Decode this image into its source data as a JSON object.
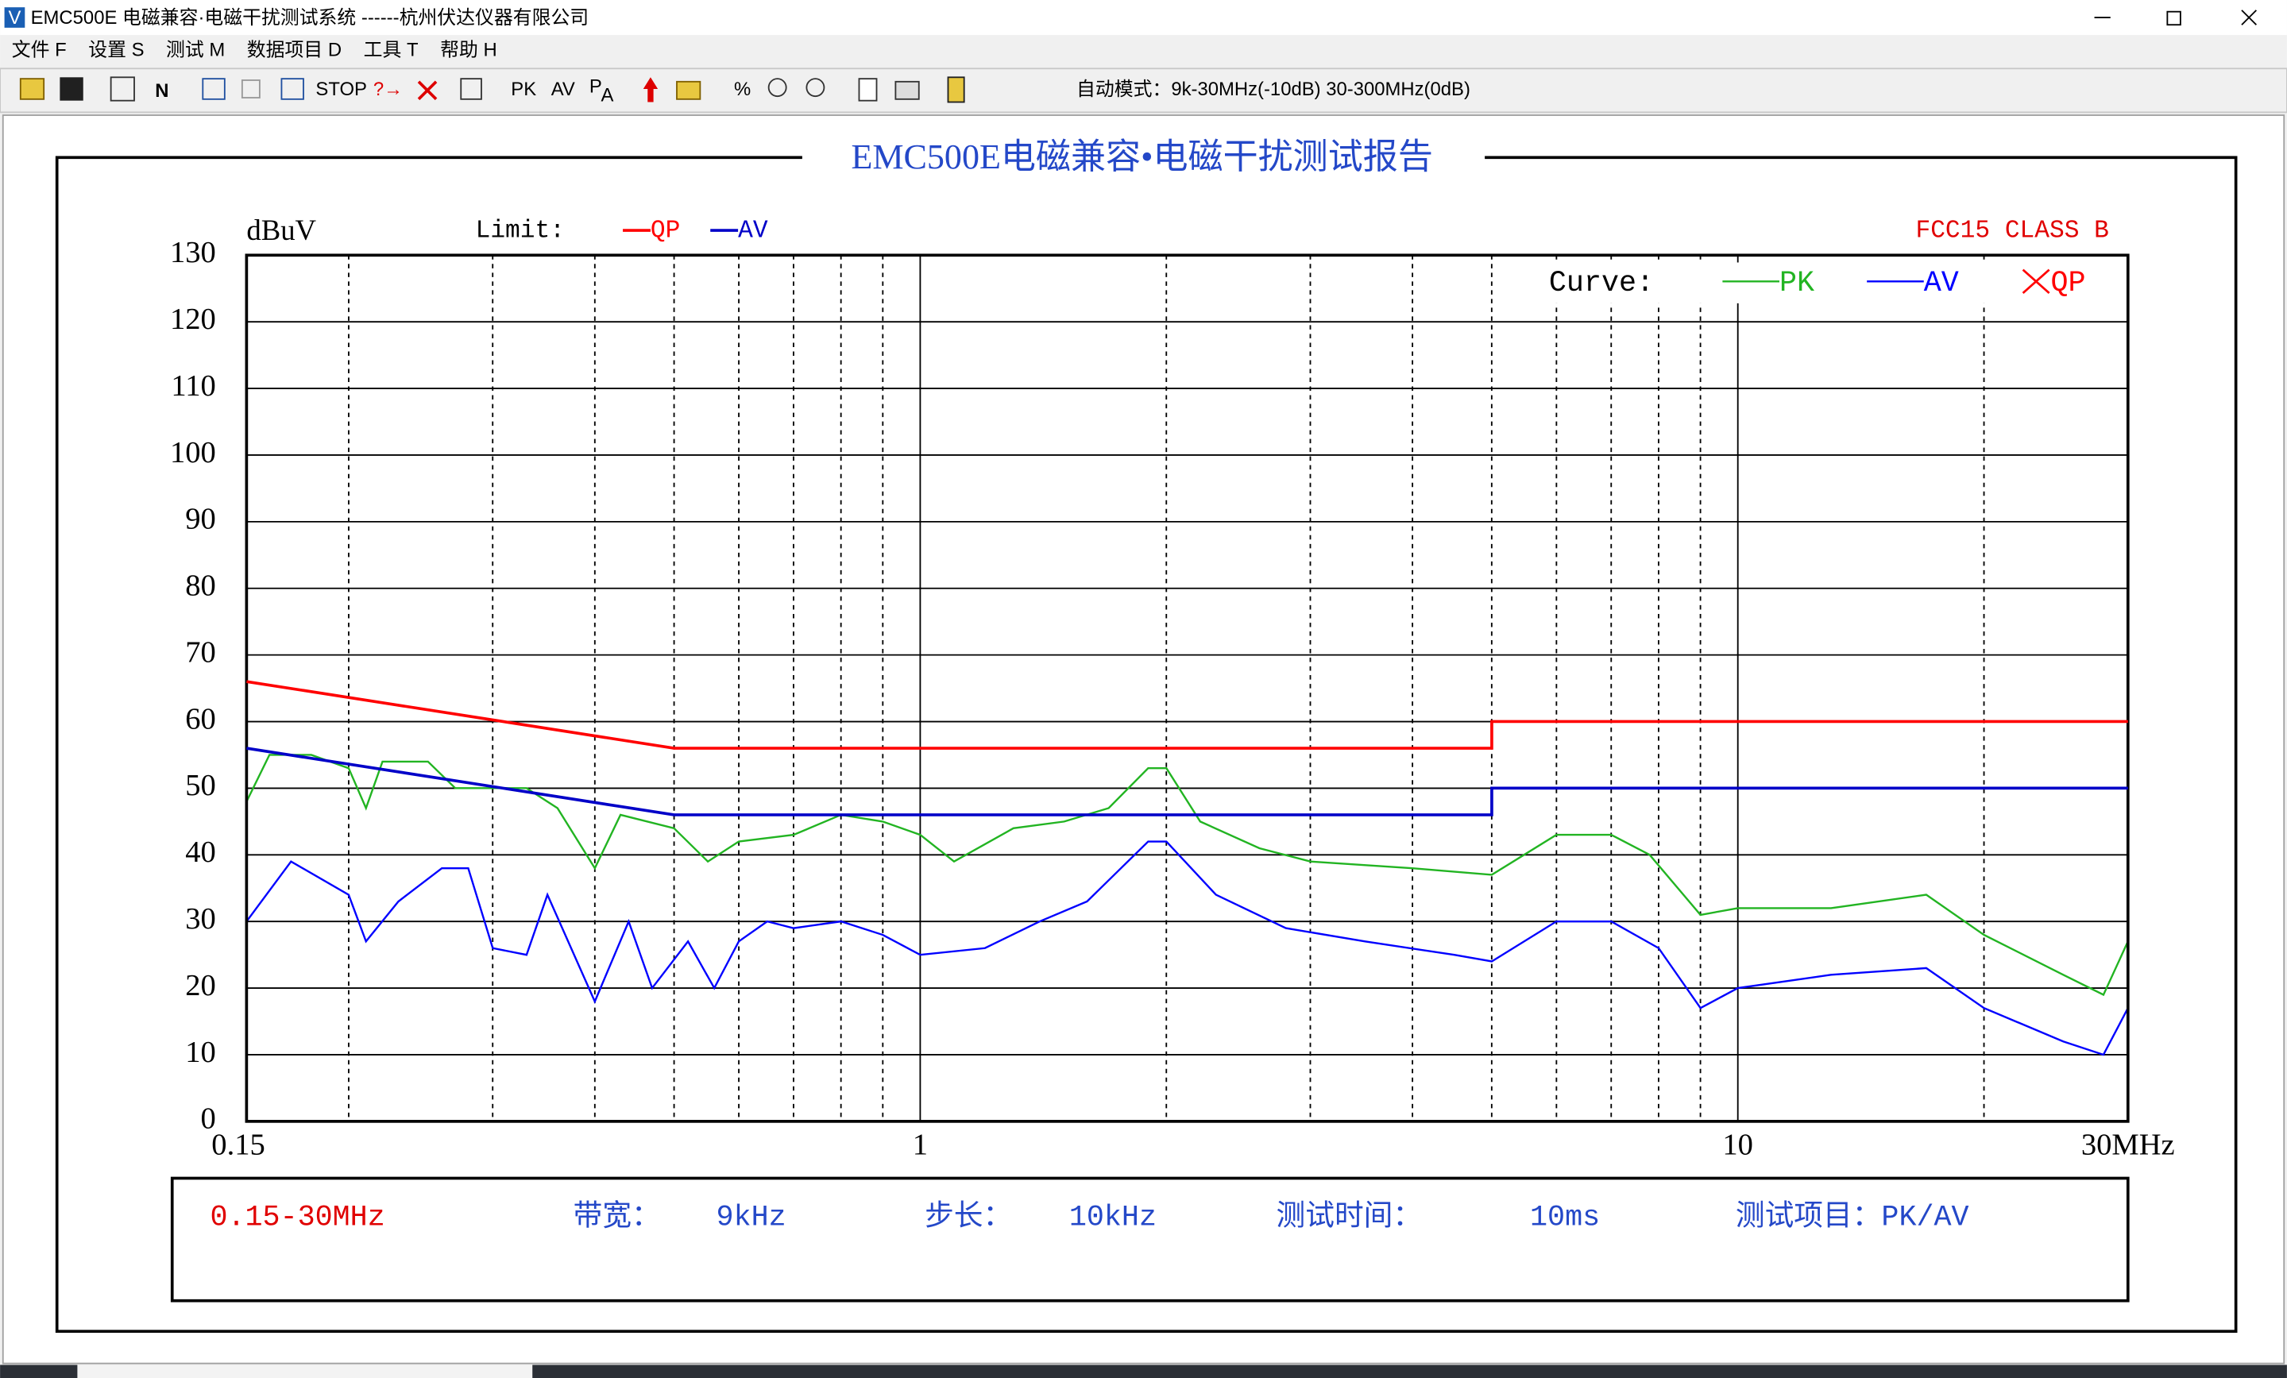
{
  "title_bar": {
    "icon_letter": "V",
    "title": "EMC500E 电磁兼容·电磁干扰测试系统  ------杭州伏达仪器有限公司"
  },
  "menu": {
    "items": [
      "文件 F",
      "设置 S",
      "测试 M",
      "数据项目 D",
      "工具 T",
      "帮助 H"
    ]
  },
  "toolbar": {
    "n_button": "N",
    "stop": "STOP",
    "pk": "PK",
    "av": "AV",
    "pa": [
      "P",
      "A"
    ],
    "mode": "自动模式：9k-30MHz(-10dB)  30-300MHz(0dB)"
  },
  "report": {
    "title": "EMC500E电磁兼容•电磁干扰测试报告",
    "info": {
      "range": "0.15-30MHz",
      "bandwidth_label": "带宽：",
      "bandwidth": "9kHz",
      "step_label": "步长：",
      "step": "10kHz",
      "time_label": "测试时间：",
      "time": "10ms",
      "items": "测试项目：PK/AV"
    }
  },
  "chart_data": {
    "type": "line",
    "y_label": "dBuV",
    "standard": "FCC15 CLASS B",
    "limit_label": "Limit:",
    "curve_label": "Curve:",
    "xscale": "log",
    "xlim": [
      0.15,
      30
    ],
    "ylim": [
      0,
      130
    ],
    "xticks": [
      0.15,
      1,
      10,
      {
        "value": 30,
        "label": "30MHz"
      }
    ],
    "xgrid_minor": [
      0.2,
      0.3,
      0.4,
      0.5,
      0.6,
      0.7,
      0.8,
      0.9,
      2,
      3,
      4,
      5,
      6,
      7,
      8,
      9,
      20
    ],
    "yticks": [
      0,
      10,
      20,
      30,
      40,
      50,
      60,
      70,
      80,
      90,
      100,
      110,
      120,
      130
    ],
    "grid": true,
    "limits": [
      {
        "name": "QP",
        "color": "#ff0000",
        "x": [
          0.15,
          0.5,
          5,
          5,
          30
        ],
        "values": [
          66,
          56,
          56,
          60,
          60
        ]
      },
      {
        "name": "AV",
        "color": "#0000c8",
        "x": [
          0.15,
          0.5,
          5,
          5,
          30
        ],
        "values": [
          56,
          46,
          46,
          50,
          50
        ]
      }
    ],
    "series": [
      {
        "name": "PK",
        "color": "#22b422",
        "x": [
          0.15,
          0.16,
          0.18,
          0.2,
          0.21,
          0.22,
          0.25,
          0.27,
          0.3,
          0.33,
          0.36,
          0.4,
          0.43,
          0.5,
          0.55,
          0.6,
          0.7,
          0.8,
          0.9,
          1.0,
          1.1,
          1.3,
          1.5,
          1.7,
          1.9,
          2.0,
          2.2,
          2.6,
          3,
          4,
          5,
          6,
          7,
          7.8,
          9,
          10,
          13,
          17,
          20,
          25,
          28,
          30
        ],
        "values": [
          48,
          55,
          55,
          53,
          47,
          54,
          54,
          50,
          50,
          50,
          47,
          38,
          46,
          44,
          39,
          42,
          43,
          46,
          45,
          43,
          39,
          44,
          45,
          47,
          53,
          53,
          45,
          41,
          39,
          38,
          37,
          43,
          43,
          40,
          31,
          32,
          32,
          34,
          28,
          22,
          19,
          27
        ]
      },
      {
        "name": "AV",
        "color": "#0000ff",
        "x": [
          0.15,
          0.17,
          0.2,
          0.21,
          0.23,
          0.26,
          0.28,
          0.3,
          0.33,
          0.35,
          0.4,
          0.44,
          0.47,
          0.52,
          0.56,
          0.6,
          0.65,
          0.7,
          0.8,
          0.9,
          1.0,
          1.2,
          1.4,
          1.6,
          1.9,
          2.0,
          2.3,
          2.8,
          3.5,
          4.5,
          5,
          6,
          7,
          8,
          9,
          10,
          13,
          17,
          20,
          25,
          28,
          30
        ],
        "values": [
          30,
          39,
          34,
          27,
          33,
          38,
          38,
          26,
          25,
          34,
          18,
          30,
          20,
          27,
          20,
          27,
          30,
          29,
          30,
          28,
          25,
          26,
          30,
          33,
          42,
          42,
          34,
          29,
          27,
          25,
          24,
          30,
          30,
          26,
          17,
          20,
          22,
          23,
          17,
          12,
          10,
          17
        ]
      }
    ],
    "qp_marker": {
      "name": "QP",
      "color": "#ff0000"
    }
  }
}
